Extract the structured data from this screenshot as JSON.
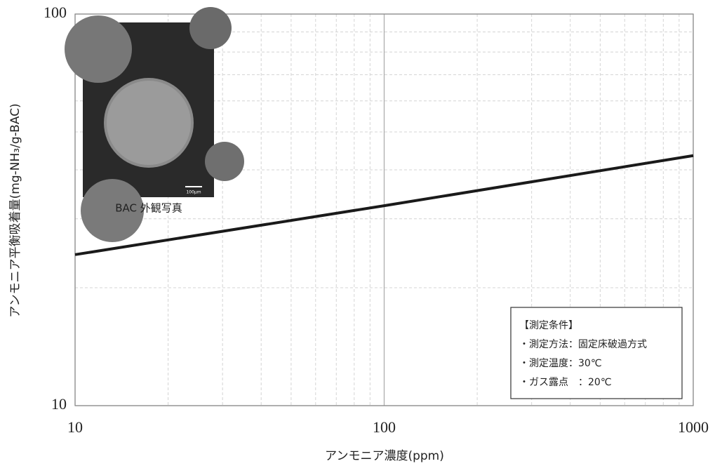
{
  "chart_data": {
    "type": "line",
    "x_label": "アンモニア濃度(ppm)",
    "y_label": "アンモニア平衡吸着量(mg-NH₃/g-BAC)",
    "x": [
      10,
      100,
      1000
    ],
    "series": [
      {
        "color": "#1a1a1a",
        "values": [
          24.3,
          32.4,
          43.5
        ]
      }
    ],
    "xlim": [
      10,
      1000
    ],
    "ylim": [
      10,
      100
    ],
    "xticks": [
      10,
      100,
      1000
    ],
    "yticks": [
      10,
      100
    ],
    "log_x": true,
    "log_y": true,
    "grid": true,
    "minor_grid": true,
    "inset_caption": "BAC 外観写真",
    "inset_scale_label": "100μm",
    "annotation": [
      "【測定条件】",
      "・測定方法：固定床破過方式",
      "・測定温度：30℃",
      "・ガス露点　：20℃"
    ]
  }
}
